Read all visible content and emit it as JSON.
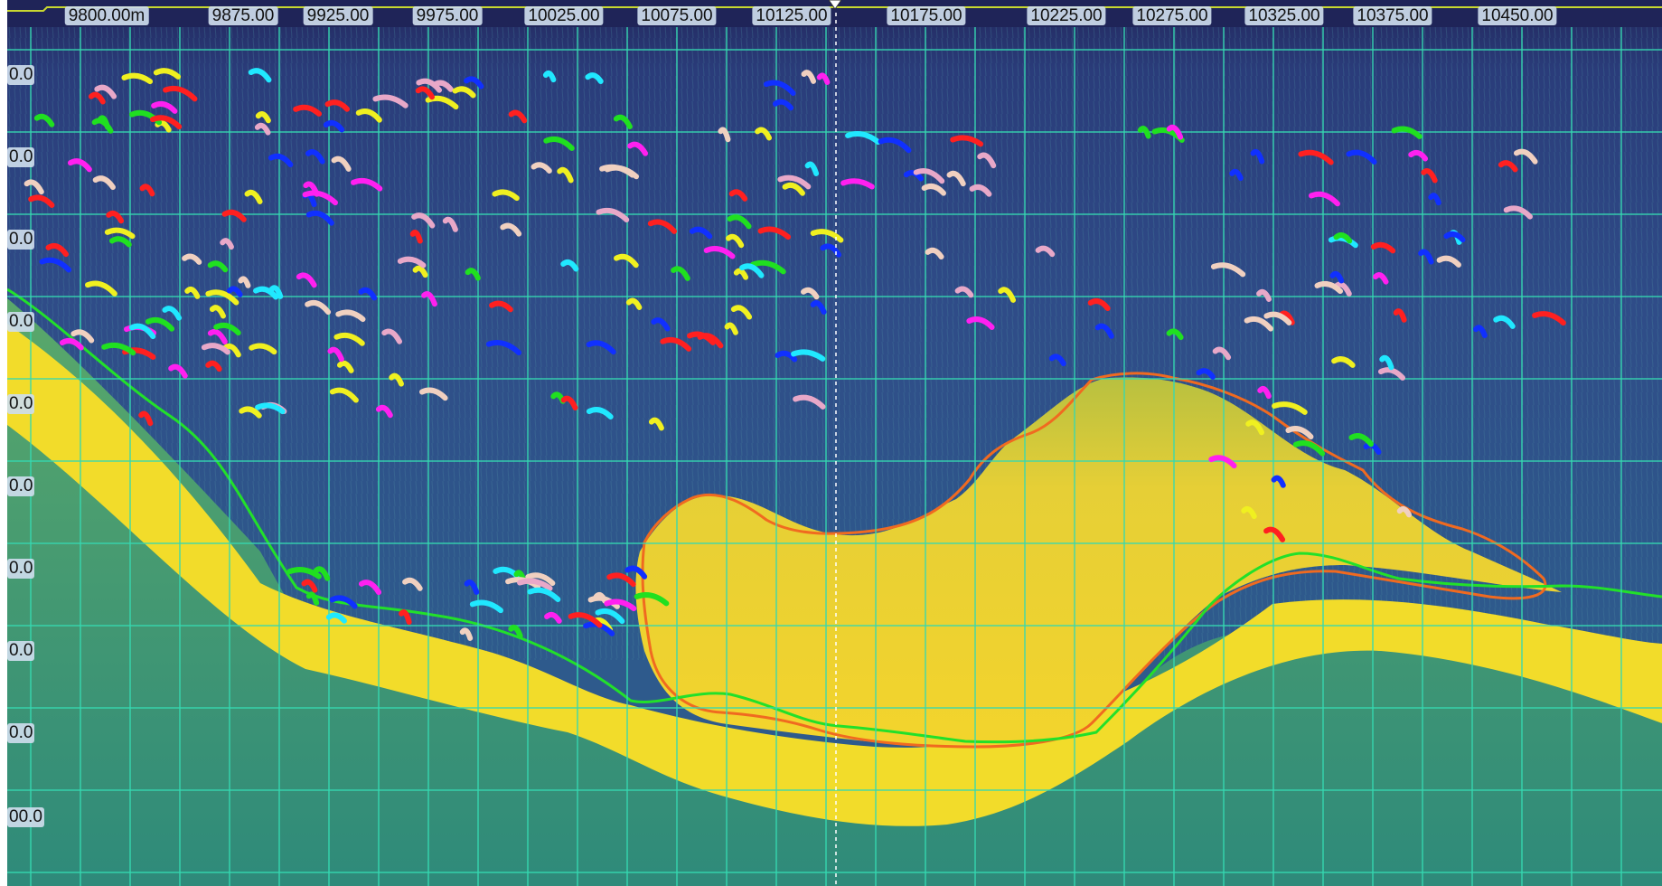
{
  "top_axis": {
    "labels": [
      "9800.00m",
      "9875.00",
      "9925.00",
      "9975.00",
      "10025.00",
      "10075.00",
      "10125.00",
      "10175.00",
      "10225.00",
      "10275.00",
      "10325.00",
      "10375.00",
      "10450.00"
    ]
  },
  "left_axis": {
    "labels": [
      "0.0",
      "0.0",
      "0.0",
      "0.0",
      "0.0",
      "0.0",
      "0.0",
      "0.0",
      "0.0",
      "00.0"
    ]
  },
  "colors": {
    "water": "#2f4a86",
    "water_deep": "#24306a",
    "seabed": "#f2dc2a",
    "seabed_edge": "#c6d63a",
    "sub_bottom": "#3f9a78",
    "grid": "#35d8b0",
    "bottom_line": "#22e02a",
    "region_outline": "#f06a20",
    "cursor_line": "#ffffff",
    "top_strip_line": "#c8d830"
  },
  "target_colors": [
    "#ff2020",
    "#1030ff",
    "#20e8ff",
    "#f0f020",
    "#ff20f0",
    "#e8a8c8",
    "#20e020",
    "#f0d0c0"
  ]
}
